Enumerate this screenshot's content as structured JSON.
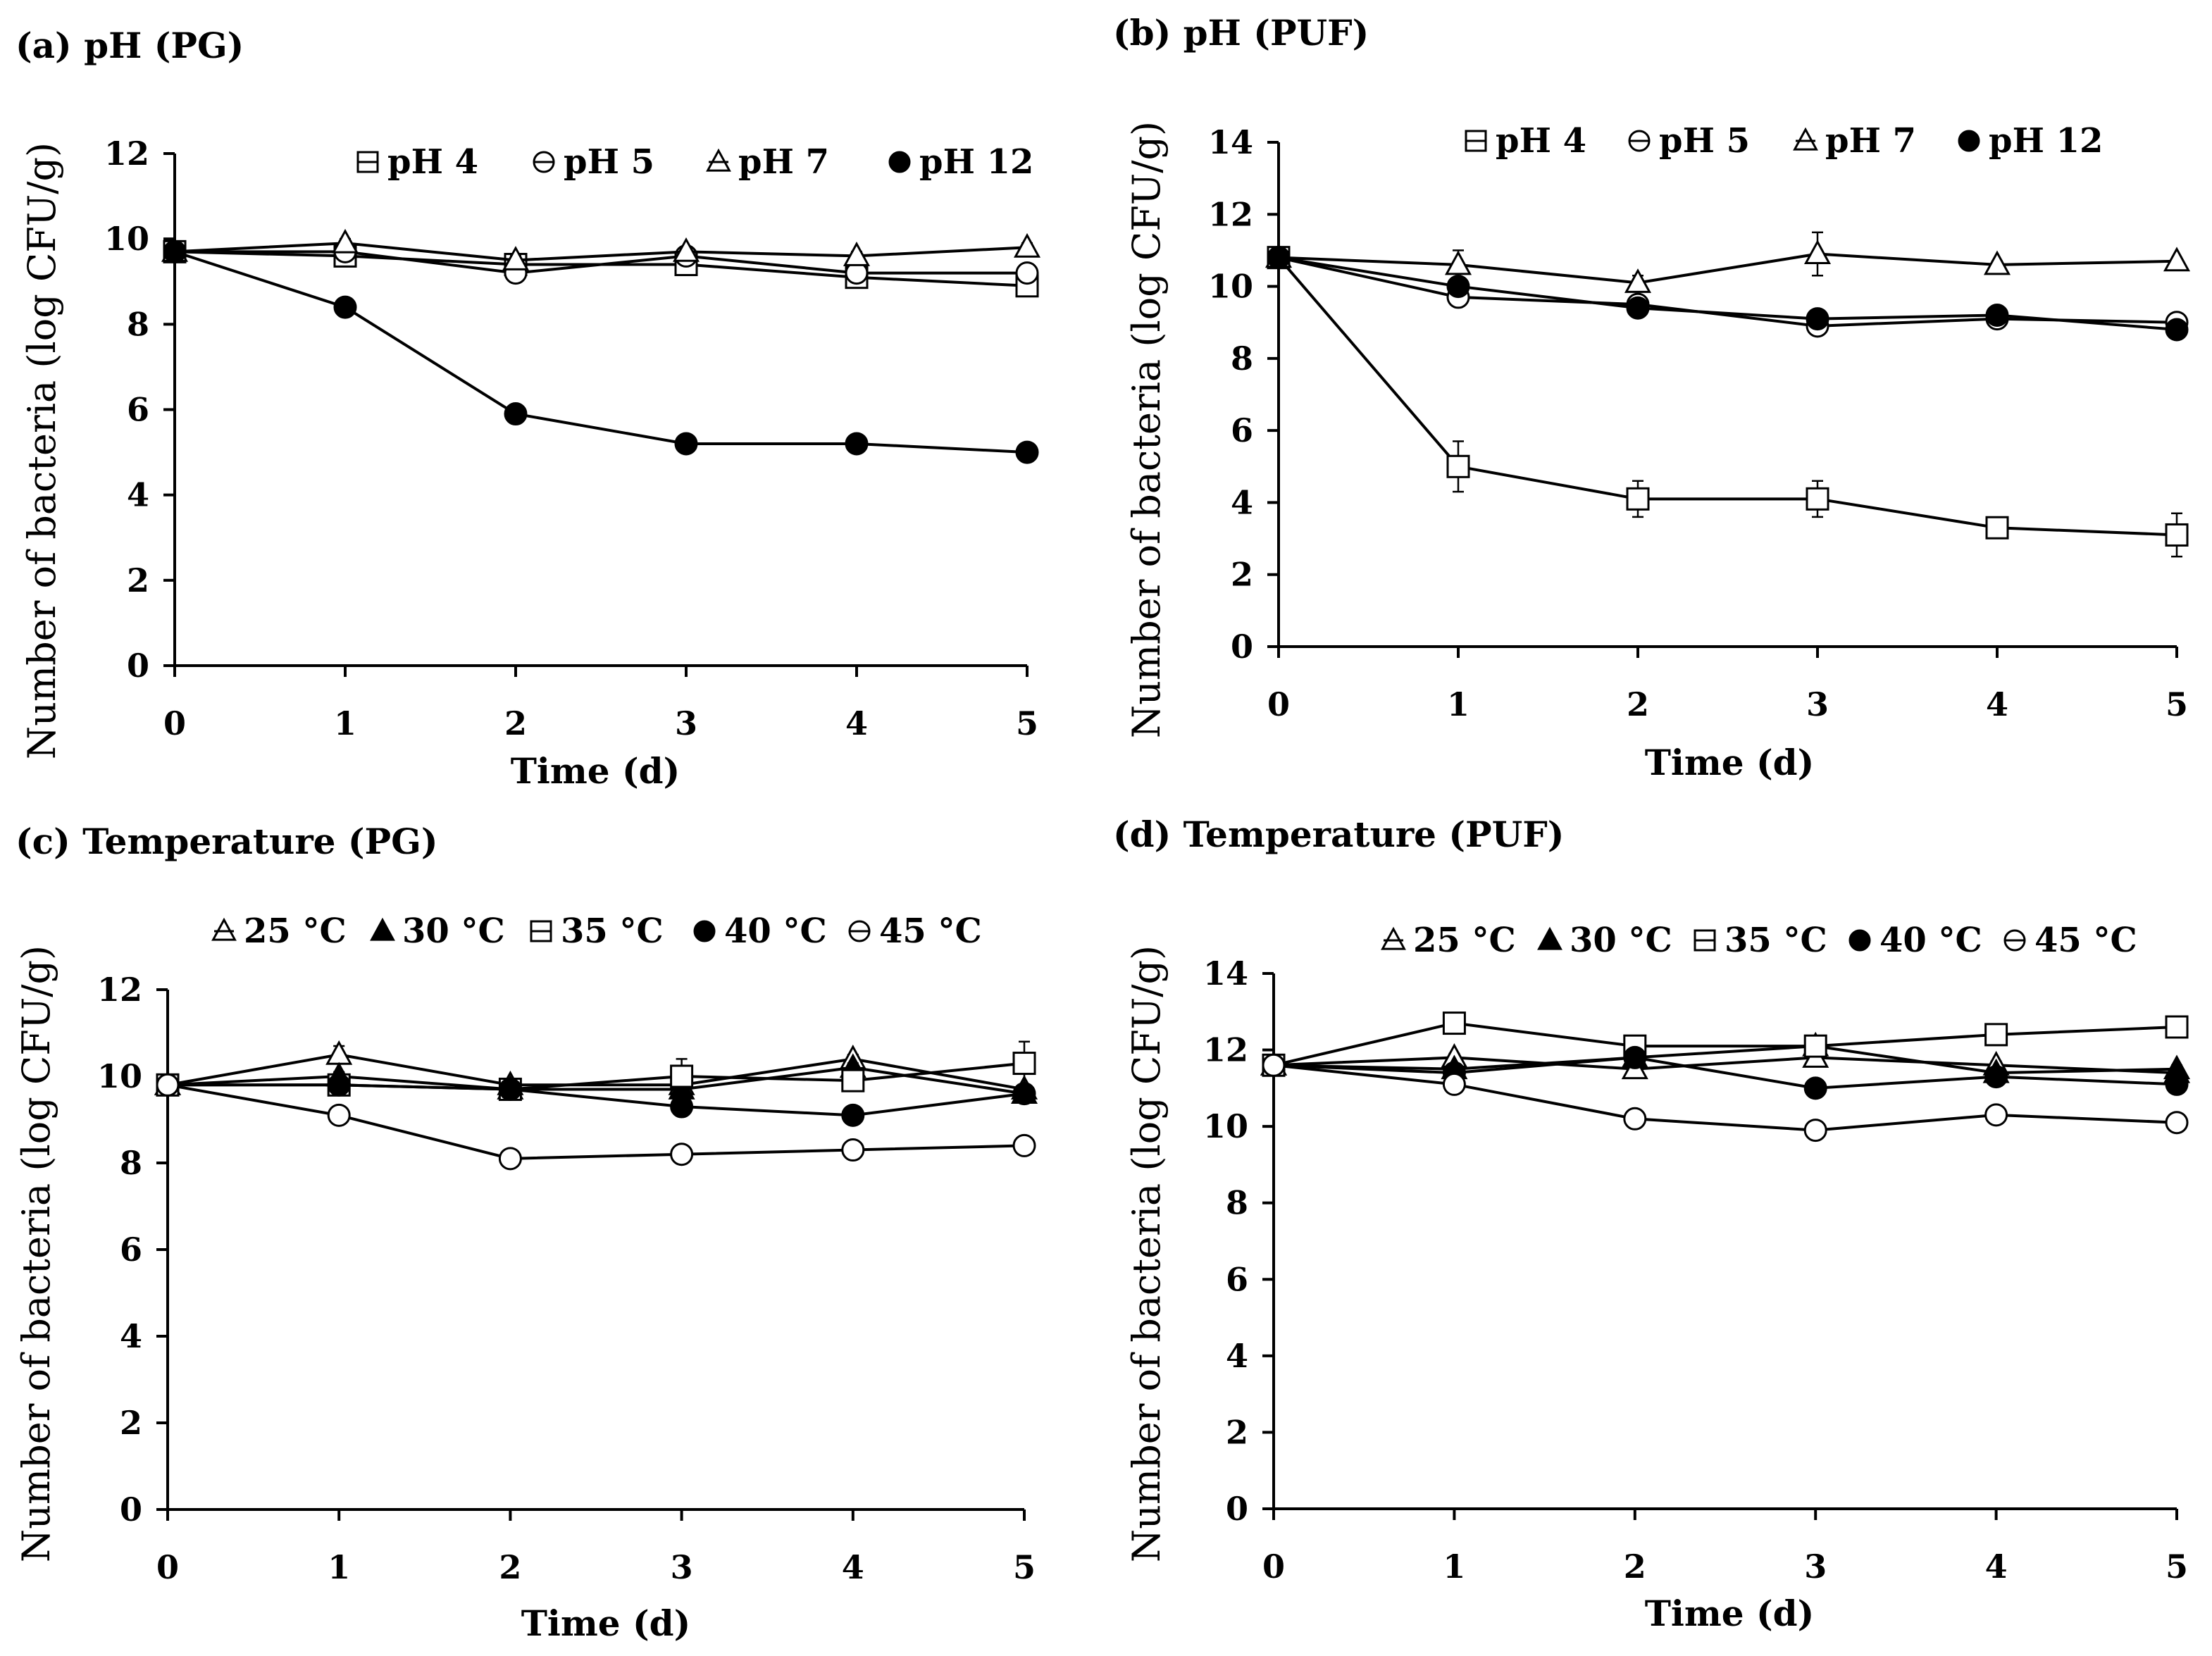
{
  "figure": {
    "panel_count": 4
  },
  "chart_data": [
    {
      "id": "a",
      "type": "line",
      "title": "(a) pH (PG)",
      "xlabel": "Time (d)",
      "ylabel": "Number of bacteria (log CFU/g)",
      "xlim": [
        0,
        5
      ],
      "ylim": [
        0,
        12
      ],
      "xticks": [
        "0",
        "1",
        "2",
        "3",
        "4",
        "5"
      ],
      "yticks": [
        "0",
        "2",
        "4",
        "6",
        "8",
        "10",
        "12"
      ],
      "x": [
        0,
        1,
        2,
        3,
        4,
        5
      ],
      "legend_position": "top-right",
      "series": [
        {
          "name": "pH 4",
          "marker": "square-open",
          "values": [
            9.7,
            9.6,
            9.4,
            9.4,
            9.1,
            8.9
          ],
          "errors": [
            0.1,
            0.1,
            0.1,
            0.1,
            0.1,
            0.1
          ]
        },
        {
          "name": "pH 5",
          "marker": "circle-open",
          "values": [
            9.7,
            9.7,
            9.2,
            9.6,
            9.2,
            9.2
          ],
          "errors": [
            0.1,
            0.1,
            0.1,
            0.1,
            0.1,
            0.1
          ]
        },
        {
          "name": "pH 7",
          "marker": "triangle-open",
          "values": [
            9.7,
            9.9,
            9.5,
            9.7,
            9.6,
            9.8
          ],
          "errors": [
            0.1,
            0.1,
            0.1,
            0.1,
            0.1,
            0.1
          ]
        },
        {
          "name": "pH 12",
          "marker": "circle-filled",
          "values": [
            9.7,
            8.4,
            5.9,
            5.2,
            5.2,
            5.0
          ],
          "errors": [
            0.1,
            0.1,
            0.1,
            0.1,
            0.1,
            0.1
          ]
        }
      ]
    },
    {
      "id": "b",
      "type": "line",
      "title": "(b) pH (PUF)",
      "xlabel": "Time (d)",
      "ylabel": "Number of bacteria (log CFU/g)",
      "xlim": [
        0,
        5
      ],
      "ylim": [
        0,
        14
      ],
      "xticks": [
        "0",
        "1",
        "2",
        "3",
        "4",
        "5"
      ],
      "yticks": [
        "0",
        "2",
        "4",
        "6",
        "8",
        "10",
        "12",
        "14"
      ],
      "x": [
        0,
        1,
        2,
        3,
        4,
        5
      ],
      "legend_position": "top-right",
      "series": [
        {
          "name": "pH 4",
          "marker": "square-open",
          "values": [
            10.8,
            5.0,
            4.1,
            4.1,
            3.3,
            3.1
          ],
          "errors": [
            0.2,
            0.7,
            0.5,
            0.5,
            0.2,
            0.6
          ]
        },
        {
          "name": "pH 5",
          "marker": "circle-open",
          "values": [
            10.8,
            9.7,
            9.5,
            8.9,
            9.1,
            9.0
          ],
          "errors": [
            0.1,
            0.1,
            0.2,
            0.2,
            0.1,
            0.1
          ]
        },
        {
          "name": "pH 7",
          "marker": "triangle-open",
          "values": [
            10.8,
            10.6,
            10.1,
            10.9,
            10.6,
            10.7
          ],
          "errors": [
            0.1,
            0.4,
            0.2,
            0.6,
            0.1,
            0.1
          ]
        },
        {
          "name": "pH 12",
          "marker": "circle-filled",
          "values": [
            10.8,
            10.0,
            9.4,
            9.1,
            9.2,
            8.8
          ],
          "errors": [
            0.1,
            0.1,
            0.1,
            0.1,
            0.1,
            0.1
          ]
        }
      ]
    },
    {
      "id": "c",
      "type": "line",
      "title": "(c) Temperature (PG)",
      "xlabel": "Time (d)",
      "ylabel": "Number of bacteria (log CFU/g)",
      "xlim": [
        0,
        5
      ],
      "ylim": [
        0,
        12
      ],
      "xticks": [
        "0",
        "1",
        "2",
        "3",
        "4",
        "5"
      ],
      "yticks": [
        "0",
        "2",
        "4",
        "6",
        "8",
        "10",
        "12"
      ],
      "x": [
        0,
        1,
        2,
        3,
        4,
        5
      ],
      "legend_position": "top",
      "series": [
        {
          "name": "25 °C",
          "marker": "triangle-open",
          "values": [
            9.8,
            10.5,
            9.8,
            9.8,
            10.4,
            9.7
          ],
          "errors": [
            0.1,
            0.2,
            0.1,
            0.1,
            0.1,
            0.1
          ]
        },
        {
          "name": "30 °C",
          "marker": "triangle-filled",
          "values": [
            9.8,
            10.0,
            9.7,
            9.7,
            10.2,
            9.6
          ],
          "errors": [
            0.1,
            0.1,
            0.1,
            0.1,
            0.1,
            0.1
          ]
        },
        {
          "name": "35 °C",
          "marker": "square-open",
          "values": [
            9.8,
            9.8,
            9.7,
            10.0,
            9.9,
            10.3
          ],
          "errors": [
            0.1,
            0.1,
            0.1,
            0.4,
            0.1,
            0.5
          ]
        },
        {
          "name": "40 °C",
          "marker": "circle-filled",
          "values": [
            9.8,
            9.8,
            9.7,
            9.3,
            9.1,
            9.6
          ],
          "errors": [
            0.1,
            0.1,
            0.1,
            0.1,
            0.1,
            0.1
          ]
        },
        {
          "name": "45 °C",
          "marker": "circle-open",
          "values": [
            9.8,
            9.1,
            8.1,
            8.2,
            8.3,
            8.4
          ],
          "errors": [
            0.1,
            0.1,
            0.1,
            0.1,
            0.2,
            0.1
          ]
        }
      ]
    },
    {
      "id": "d",
      "type": "line",
      "title": "(d) Temperature (PUF)",
      "xlabel": "Time (d)",
      "ylabel": "Number of bacteria (log CFU/g)",
      "xlim": [
        0,
        5
      ],
      "ylim": [
        0,
        14
      ],
      "xticks": [
        "0",
        "1",
        "2",
        "3",
        "4",
        "5"
      ],
      "yticks": [
        "0",
        "2",
        "4",
        "6",
        "8",
        "10",
        "12",
        "14"
      ],
      "x": [
        0,
        1,
        2,
        3,
        4,
        5
      ],
      "legend_position": "top",
      "series": [
        {
          "name": "25 °C",
          "marker": "triangle-open",
          "values": [
            11.6,
            11.8,
            11.5,
            11.8,
            11.6,
            11.4
          ],
          "errors": [
            0.1,
            0.1,
            0.1,
            0.1,
            0.1,
            0.1
          ]
        },
        {
          "name": "30 °C",
          "marker": "triangle-filled",
          "values": [
            11.6,
            11.5,
            11.8,
            12.1,
            11.4,
            11.5
          ],
          "errors": [
            0.1,
            0.1,
            0.1,
            0.1,
            0.1,
            0.1
          ]
        },
        {
          "name": "35 °C",
          "marker": "square-open",
          "values": [
            11.6,
            12.7,
            12.1,
            12.1,
            12.4,
            12.6
          ],
          "errors": [
            0.1,
            0.1,
            0.1,
            0.1,
            0.1,
            0.1
          ]
        },
        {
          "name": "40 °C",
          "marker": "circle-filled",
          "values": [
            11.6,
            11.4,
            11.8,
            11.0,
            11.3,
            11.1
          ],
          "errors": [
            0.1,
            0.1,
            0.1,
            0.1,
            0.1,
            0.1
          ]
        },
        {
          "name": "45 °C",
          "marker": "circle-open",
          "values": [
            11.6,
            11.1,
            10.2,
            9.9,
            10.3,
            10.1
          ],
          "errors": [
            0.1,
            0.1,
            0.1,
            0.1,
            0.1,
            0.1
          ]
        }
      ]
    }
  ]
}
